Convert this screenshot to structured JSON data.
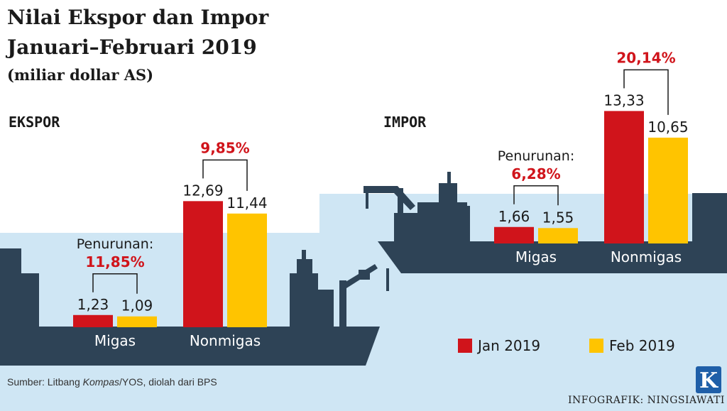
{
  "header": {
    "title_line1": "Nilai Ekspor dan Impor",
    "title_line2": "Januari–Februari 2019",
    "subtitle": "(miliar dollar AS)"
  },
  "colors": {
    "jan": "#d0141b",
    "feb": "#ffc400",
    "sea": "#cfe6f4",
    "ship": "#2e4356",
    "pct": "#d0141b"
  },
  "legend": [
    {
      "label": "Jan 2019",
      "color": "#d0141b"
    },
    {
      "label": "Feb 2019",
      "color": "#ffc400"
    }
  ],
  "chart_data": [
    {
      "type": "bar",
      "title": "EKSPOR",
      "categories": [
        "Migas",
        "Nonmigas"
      ],
      "series": [
        {
          "name": "Jan 2019",
          "values": [
            1.23,
            12.69
          ],
          "labels": [
            "1,23",
            "12,69"
          ]
        },
        {
          "name": "Feb 2019",
          "values": [
            1.09,
            11.44
          ],
          "labels": [
            "1,09",
            "11,44"
          ]
        }
      ],
      "annotations": [
        {
          "category": "Migas",
          "prefix": "Penurunan:",
          "value": "11,85%"
        },
        {
          "category": "Nonmigas",
          "prefix": "",
          "value": "9,85%"
        }
      ]
    },
    {
      "type": "bar",
      "title": "IMPOR",
      "categories": [
        "Migas",
        "Nonmigas"
      ],
      "series": [
        {
          "name": "Jan 2019",
          "values": [
            1.66,
            13.33
          ],
          "labels": [
            "1,66",
            "13,33"
          ]
        },
        {
          "name": "Feb 2019",
          "values": [
            1.55,
            10.65
          ],
          "labels": [
            "1,55",
            "10,65"
          ]
        }
      ],
      "annotations": [
        {
          "category": "Migas",
          "prefix": "Penurunan:",
          "value": "6,28%"
        },
        {
          "category": "Nonmigas",
          "prefix": "",
          "value": "20,14%"
        }
      ]
    }
  ],
  "footer": {
    "source_prefix": "Sumber: Litbang ",
    "source_italic": "Kompas",
    "source_suffix": "/YOS, diolah dari BPS",
    "credit": "INFOGRAFIK: NINGSIAWATI",
    "logo_letter": "K"
  }
}
